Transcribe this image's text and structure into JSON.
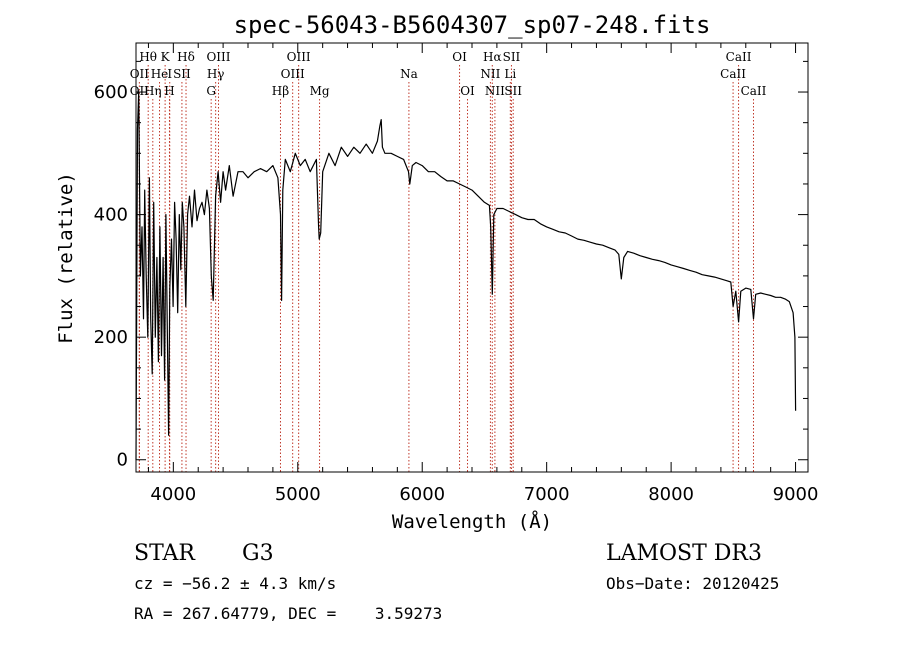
{
  "chart_data": {
    "type": "line",
    "title": "spec-56043-B5604307_sp07-248.fits",
    "xlabel": "Wavelength (Å)",
    "ylabel": "Flux (relative)",
    "xlim": [
      3700,
      9100
    ],
    "ylim": [
      -20,
      680
    ],
    "x_ticks": [
      4000,
      5000,
      6000,
      7000,
      8000,
      9000
    ],
    "y_ticks": [
      0,
      200,
      400,
      600
    ],
    "grid": false,
    "spectrum": {
      "line_color": "#000000",
      "x_range": [
        3700,
        9000
      ],
      "points": [
        [
          3700,
          0
        ],
        [
          3712,
          540
        ],
        [
          3722,
          600
        ],
        [
          3735,
          300
        ],
        [
          3748,
          380
        ],
        [
          3760,
          230
        ],
        [
          3770,
          440
        ],
        [
          3782,
          300
        ],
        [
          3795,
          200
        ],
        [
          3808,
          460
        ],
        [
          3818,
          230
        ],
        [
          3830,
          140
        ],
        [
          3842,
          420
        ],
        [
          3855,
          200
        ],
        [
          3868,
          330
        ],
        [
          3880,
          160
        ],
        [
          3892,
          380
        ],
        [
          3905,
          170
        ],
        [
          3918,
          330
        ],
        [
          3930,
          130
        ],
        [
          3940,
          400
        ],
        [
          3952,
          200
        ],
        [
          3962,
          40
        ],
        [
          3972,
          280
        ],
        [
          3985,
          360
        ],
        [
          3998,
          250
        ],
        [
          4010,
          420
        ],
        [
          4022,
          360
        ],
        [
          4035,
          240
        ],
        [
          4048,
          400
        ],
        [
          4060,
          310
        ],
        [
          4072,
          420
        ],
        [
          4085,
          380
        ],
        [
          4100,
          250
        ],
        [
          4115,
          400
        ],
        [
          4130,
          430
        ],
        [
          4150,
          380
        ],
        [
          4170,
          440
        ],
        [
          4190,
          390
        ],
        [
          4210,
          410
        ],
        [
          4230,
          420
        ],
        [
          4250,
          400
        ],
        [
          4270,
          440
        ],
        [
          4290,
          410
        ],
        [
          4305,
          300
        ],
        [
          4320,
          260
        ],
        [
          4340,
          430
        ],
        [
          4360,
          470
        ],
        [
          4380,
          420
        ],
        [
          4400,
          470
        ],
        [
          4420,
          440
        ],
        [
          4450,
          480
        ],
        [
          4480,
          430
        ],
        [
          4520,
          470
        ],
        [
          4560,
          470
        ],
        [
          4600,
          460
        ],
        [
          4650,
          470
        ],
        [
          4700,
          475
        ],
        [
          4750,
          470
        ],
        [
          4800,
          480
        ],
        [
          4840,
          460
        ],
        [
          4861,
          400
        ],
        [
          4870,
          260
        ],
        [
          4880,
          440
        ],
        [
          4900,
          490
        ],
        [
          4940,
          470
        ],
        [
          4980,
          500
        ],
        [
          5020,
          480
        ],
        [
          5060,
          490
        ],
        [
          5100,
          470
        ],
        [
          5150,
          490
        ],
        [
          5167,
          380
        ],
        [
          5172,
          360
        ],
        [
          5184,
          370
        ],
        [
          5200,
          470
        ],
        [
          5250,
          500
        ],
        [
          5300,
          480
        ],
        [
          5350,
          510
        ],
        [
          5400,
          495
        ],
        [
          5450,
          510
        ],
        [
          5500,
          500
        ],
        [
          5550,
          515
        ],
        [
          5600,
          500
        ],
        [
          5640,
          520
        ],
        [
          5660,
          545
        ],
        [
          5670,
          555
        ],
        [
          5680,
          510
        ],
        [
          5700,
          500
        ],
        [
          5750,
          500
        ],
        [
          5800,
          495
        ],
        [
          5850,
          490
        ],
        [
          5890,
          470
        ],
        [
          5900,
          450
        ],
        [
          5920,
          480
        ],
        [
          5950,
          485
        ],
        [
          6000,
          480
        ],
        [
          6050,
          470
        ],
        [
          6100,
          470
        ],
        [
          6150,
          462
        ],
        [
          6200,
          455
        ],
        [
          6250,
          455
        ],
        [
          6300,
          450
        ],
        [
          6350,
          445
        ],
        [
          6400,
          440
        ],
        [
          6450,
          430
        ],
        [
          6500,
          420
        ],
        [
          6540,
          415
        ],
        [
          6550,
          380
        ],
        [
          6563,
          270
        ],
        [
          6575,
          400
        ],
        [
          6600,
          410
        ],
        [
          6650,
          410
        ],
        [
          6700,
          405
        ],
        [
          6750,
          400
        ],
        [
          6800,
          395
        ],
        [
          6850,
          392
        ],
        [
          6900,
          392
        ],
        [
          6950,
          385
        ],
        [
          7000,
          380
        ],
        [
          7050,
          376
        ],
        [
          7100,
          372
        ],
        [
          7150,
          370
        ],
        [
          7200,
          365
        ],
        [
          7250,
          360
        ],
        [
          7300,
          358
        ],
        [
          7350,
          355
        ],
        [
          7400,
          352
        ],
        [
          7450,
          350
        ],
        [
          7500,
          346
        ],
        [
          7550,
          342
        ],
        [
          7580,
          335
        ],
        [
          7600,
          295
        ],
        [
          7620,
          330
        ],
        [
          7650,
          340
        ],
        [
          7700,
          337
        ],
        [
          7750,
          333
        ],
        [
          7800,
          330
        ],
        [
          7850,
          327
        ],
        [
          7900,
          325
        ],
        [
          7950,
          322
        ],
        [
          8000,
          318
        ],
        [
          8050,
          315
        ],
        [
          8100,
          312
        ],
        [
          8150,
          309
        ],
        [
          8200,
          306
        ],
        [
          8250,
          302
        ],
        [
          8300,
          300
        ],
        [
          8350,
          298
        ],
        [
          8400,
          295
        ],
        [
          8450,
          292
        ],
        [
          8480,
          290
        ],
        [
          8498,
          250
        ],
        [
          8520,
          275
        ],
        [
          8542,
          225
        ],
        [
          8560,
          275
        ],
        [
          8600,
          280
        ],
        [
          8640,
          278
        ],
        [
          8662,
          230
        ],
        [
          8680,
          270
        ],
        [
          8720,
          272
        ],
        [
          8760,
          270
        ],
        [
          8800,
          268
        ],
        [
          8840,
          265
        ],
        [
          8880,
          265
        ],
        [
          8920,
          262
        ],
        [
          8950,
          258
        ],
        [
          8980,
          240
        ],
        [
          8995,
          200
        ],
        [
          9000,
          80
        ]
      ]
    },
    "line_color": "#c0392b",
    "spectral_lines": [
      {
        "label": "Hθ",
        "x": 3798,
        "row": 1
      },
      {
        "label": "OII",
        "x": 3727,
        "row": 2
      },
      {
        "label": "He",
        "x": 3889,
        "row": 2
      },
      {
        "label": "OII",
        "x": 3727,
        "row": 3
      },
      {
        "label": "Hη",
        "x": 3835,
        "row": 3
      },
      {
        "label": "K",
        "x": 3934,
        "row": 1
      },
      {
        "label": "Hδ",
        "x": 4102,
        "row": 1
      },
      {
        "label": "I",
        "x": 3971,
        "row": 2
      },
      {
        "label": "SII",
        "x": 4069,
        "row": 2
      },
      {
        "label": "H",
        "x": 3969,
        "row": 3
      },
      {
        "label": "OIII",
        "x": 4363,
        "row": 1
      },
      {
        "label": "Hγ",
        "x": 4340,
        "row": 2
      },
      {
        "label": "G",
        "x": 4304,
        "row": 3
      },
      {
        "label": "OIII",
        "x": 5007,
        "row": 1
      },
      {
        "label": "OIII",
        "x": 4959,
        "row": 2
      },
      {
        "label": "Hβ",
        "x": 4861,
        "row": 3
      },
      {
        "label": "Mg",
        "x": 5175,
        "row": 3
      },
      {
        "label": "Na",
        "x": 5893,
        "row": 2
      },
      {
        "label": "OI",
        "x": 6300,
        "row": 1
      },
      {
        "label": "OI",
        "x": 6364,
        "row": 3
      },
      {
        "label": "Hα",
        "x": 6563,
        "row": 1
      },
      {
        "label": "SII",
        "x": 6717,
        "row": 1
      },
      {
        "label": "NII",
        "x": 6548,
        "row": 2
      },
      {
        "label": "Li",
        "x": 6708,
        "row": 2
      },
      {
        "label": "NII",
        "x": 6584,
        "row": 3
      },
      {
        "label": "SII",
        "x": 6731,
        "row": 3
      },
      {
        "label": "CaII",
        "x": 8542,
        "row": 1
      },
      {
        "label": "CaII",
        "x": 8498,
        "row": 2
      },
      {
        "label": "CaII",
        "x": 8662,
        "row": 3
      }
    ]
  },
  "info": {
    "class": "STAR",
    "subclass": "G3",
    "survey": "LAMOST DR3",
    "cz": "cz = −56.2 ± 4.3 km/s",
    "obs_date": "Obs−Date: 20120425",
    "coords": "RA = 267.64779, DEC =    3.59273"
  }
}
